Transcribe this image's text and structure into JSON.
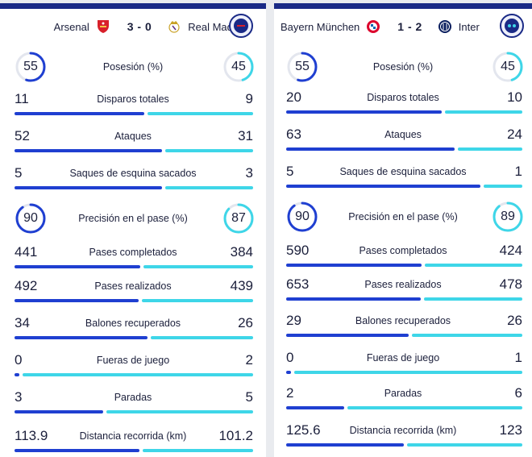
{
  "colors": {
    "home": "#1f3fd1",
    "away": "#3ed6e8",
    "track": "#e3e6ee",
    "navy": "#1a2a86"
  },
  "matches": [
    {
      "home": "Arsenal",
      "score": "3 - 0",
      "away": "Real Madrid",
      "home_crest": "arsenal-crest-icon",
      "away_crest": "real-madrid-crest-icon",
      "stats": [
        {
          "label": "Posesión (%)",
          "home": "55",
          "away": "45",
          "ring": true
        },
        {
          "label": "Disparos totales",
          "home": "11",
          "away": "9"
        },
        {
          "label": "Ataques",
          "home": "52",
          "away": "31"
        },
        {
          "label": "Saques de esquina sacados",
          "home": "5",
          "away": "3"
        },
        {
          "label": "Precisión en el pase (%)",
          "home": "90",
          "away": "87",
          "ring": true
        },
        {
          "label": "Pases completados",
          "home": "441",
          "away": "384"
        },
        {
          "label": "Pases realizados",
          "home": "492",
          "away": "439"
        },
        {
          "label": "Balones recuperados",
          "home": "34",
          "away": "26"
        },
        {
          "label": "Fueras de juego",
          "home": "0",
          "away": "2"
        },
        {
          "label": "Paradas",
          "home": "3",
          "away": "5"
        },
        {
          "label": "Distancia recorrida (km)",
          "home": "113.9",
          "away": "101.2"
        }
      ]
    },
    {
      "home": "Bayern München",
      "score": "1 - 2",
      "away": "Inter",
      "home_crest": "bayern-crest-icon",
      "away_crest": "inter-crest-icon",
      "stats": [
        {
          "label": "Posesión (%)",
          "home": "55",
          "away": "45",
          "ring": true
        },
        {
          "label": "Disparos totales",
          "home": "20",
          "away": "10"
        },
        {
          "label": "Ataques",
          "home": "63",
          "away": "24"
        },
        {
          "label": "Saques de esquina sacados",
          "home": "5",
          "away": "1"
        },
        {
          "label": "Precisión en el pase (%)",
          "home": "90",
          "away": "89",
          "ring": true
        },
        {
          "label": "Pases completados",
          "home": "590",
          "away": "424"
        },
        {
          "label": "Pases realizados",
          "home": "653",
          "away": "478"
        },
        {
          "label": "Balones recuperados",
          "home": "29",
          "away": "26"
        },
        {
          "label": "Fueras de juego",
          "home": "0",
          "away": "1"
        },
        {
          "label": "Paradas",
          "home": "2",
          "away": "6"
        },
        {
          "label": "Distancia recorrida (km)",
          "home": "125.6",
          "away": "123"
        }
      ]
    }
  ]
}
